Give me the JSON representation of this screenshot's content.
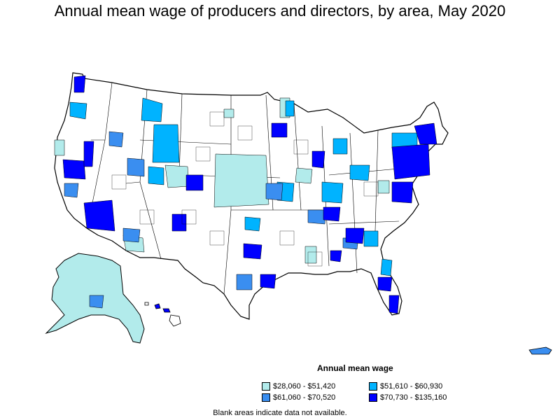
{
  "title": "Annual mean wage of producers and directors, by area, May 2020",
  "legend": {
    "title": "Annual mean wage",
    "items": [
      {
        "label": "$28,060 - $51,420",
        "color": "#b2ebeb"
      },
      {
        "label": "$51,610 - $60,930",
        "color": "#00b3ff"
      },
      {
        "label": "$61,060 - $70,520",
        "color": "#3a8ef0"
      },
      {
        "label": "$70,730 - $135,160",
        "color": "#0000ff"
      }
    ]
  },
  "note": "Blank areas indicate data not available."
}
